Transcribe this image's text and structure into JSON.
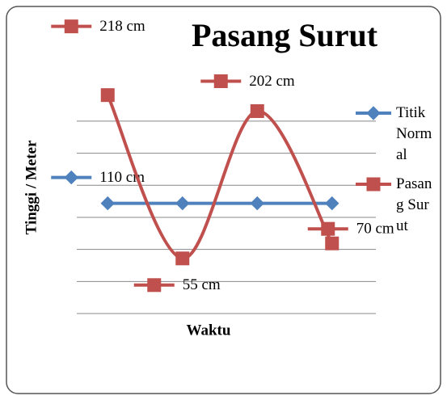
{
  "chart_data": {
    "type": "line",
    "title": "Pasang Surut",
    "y_label": "Tinggi / Meter",
    "x_label": "Waktu",
    "categories": [
      null,
      null,
      null,
      null
    ],
    "ylim": [
      0,
      230
    ],
    "yticks": [
      0,
      32,
      64,
      96,
      128,
      160,
      192
    ],
    "ytick_labels_visible": false,
    "grid": true,
    "legend": "right",
    "series": [
      {
        "name": "Titik Normal",
        "color": "#4f81bd",
        "marker": "diamond",
        "smooth": false,
        "values": [
          110,
          110,
          110,
          110
        ],
        "value_labels": [
          "110 cm",
          null,
          null,
          null
        ]
      },
      {
        "name": "Pasang Surut",
        "color": "#c0504d",
        "marker": "square",
        "smooth": true,
        "values": [
          218,
          55,
          202,
          70
        ],
        "value_labels": [
          "218 cm",
          "55 cm",
          "202 cm",
          "70 cm"
        ]
      }
    ]
  }
}
